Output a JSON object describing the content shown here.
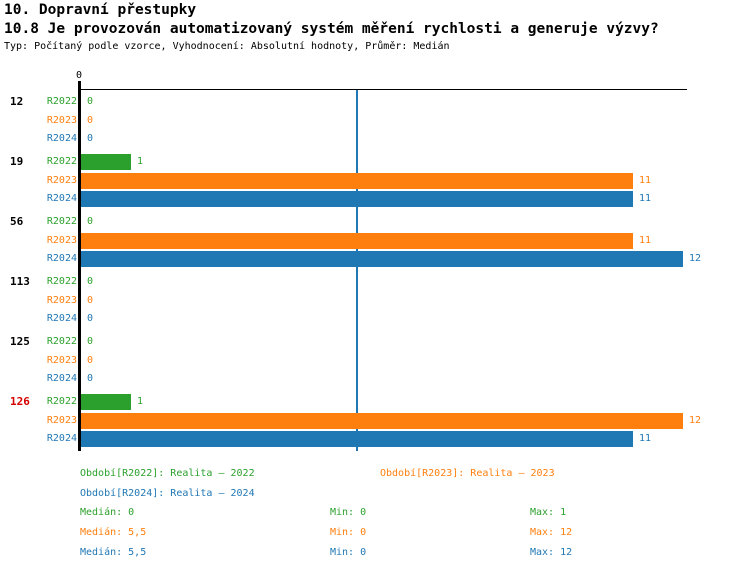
{
  "header": {
    "title": "10. Dopravní přestupky",
    "subtitle": "10.8 Je provozován automatizovaný systém měření rychlosti a generuje výzvy?",
    "meta": "Typ: Počítaný podle vzorce, Vyhodnocení: Absolutní hodnoty, Průměr: Medián"
  },
  "colors": {
    "series": [
      "#2ca02c",
      "#ff7f0e",
      "#1f77b4"
    ],
    "axis": "#000000",
    "median_line": "#1f77b4",
    "group_label": "#000000",
    "group_label_highlight": "#d40000",
    "background": "#ffffff"
  },
  "chart_data": {
    "type": "bar",
    "orientation": "horizontal",
    "series": [
      "R2022",
      "R2023",
      "R2024"
    ],
    "groups": [
      {
        "label": "12",
        "highlight": false,
        "values": [
          0,
          0,
          0
        ]
      },
      {
        "label": "19",
        "highlight": false,
        "values": [
          1,
          11,
          11
        ]
      },
      {
        "label": "56",
        "highlight": false,
        "values": [
          0,
          11,
          12
        ]
      },
      {
        "label": "113",
        "highlight": false,
        "values": [
          0,
          0,
          0
        ]
      },
      {
        "label": "125",
        "highlight": false,
        "values": [
          0,
          0,
          0
        ]
      },
      {
        "label": "126",
        "highlight": true,
        "values": [
          1,
          12,
          11
        ]
      }
    ],
    "x_axis": {
      "zero_label": "0",
      "min": 0,
      "max": 12.1
    },
    "median_line_value": 5.5,
    "grid": false,
    "legend_position": "bottom"
  },
  "legend": [
    {
      "series": "R2022",
      "label": "Období[R2022]: Realita – 2022"
    },
    {
      "series": "R2023",
      "label": "Období[R2023]: Realita – 2023"
    },
    {
      "series": "R2024",
      "label": "Období[R2024]: Realita – 2024"
    }
  ],
  "stats": [
    {
      "series": "R2022",
      "median": "Medián: 0",
      "min": "Min: 0",
      "max": "Max: 1"
    },
    {
      "series": "R2023",
      "median": "Medián: 5,5",
      "min": "Min: 0",
      "max": "Max: 12"
    },
    {
      "series": "R2024",
      "median": "Medián: 5,5",
      "min": "Min: 0",
      "max": "Max: 12"
    }
  ]
}
